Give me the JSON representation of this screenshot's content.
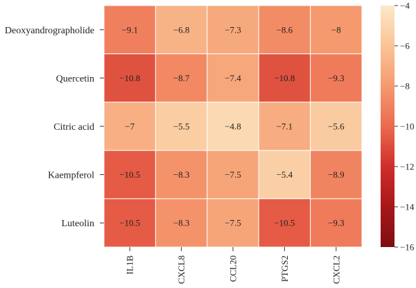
{
  "chart_data": {
    "type": "heatmap",
    "rows": [
      "Deoxyandrographolide",
      "Quercetin",
      "Citric acid",
      "Kaempferol",
      "Luteolin"
    ],
    "columns": [
      "IL1B",
      "CXCL8",
      "CCL20",
      "PTGS2",
      "CXCL2"
    ],
    "values": [
      [
        -9.1,
        -6.8,
        -7.3,
        -8.6,
        -8
      ],
      [
        -10.8,
        -8.7,
        -7.4,
        -10.8,
        -9.3
      ],
      [
        -7,
        -5.5,
        -4.8,
        -7.1,
        -5.6
      ],
      [
        -10.5,
        -8.3,
        -7.5,
        -5.4,
        -8.9
      ],
      [
        -10.5,
        -8.3,
        -7.5,
        -10.5,
        -9.3
      ]
    ],
    "value_labels": [
      [
        "−9.1",
        "−6.8",
        "−7.3",
        "−8.6",
        "−8"
      ],
      [
        "−10.8",
        "−8.7",
        "−7.4",
        "−10.8",
        "−9.3"
      ],
      [
        "−7",
        "−5.5",
        "−4.8",
        "−7.1",
        "−5.6"
      ],
      [
        "−10.5",
        "−8.3",
        "−7.5",
        "−5.4",
        "−8.9"
      ],
      [
        "−10.5",
        "−8.3",
        "−7.5",
        "−10.5",
        "−9.3"
      ]
    ],
    "colorbar": {
      "range": [
        -16,
        -4
      ],
      "ticks": [
        -4,
        -6,
        -8,
        -10,
        -12,
        -14,
        -16
      ],
      "tick_labels": [
        "−4",
        "−6",
        "−8",
        "−10",
        "−12",
        "−14",
        "−16"
      ],
      "colormap": "OrRd-reversed",
      "color_stops": [
        {
          "v": -16,
          "c": "#7e0e10"
        },
        {
          "v": -14,
          "c": "#a8171a"
        },
        {
          "v": -12,
          "c": "#cf2e2a"
        },
        {
          "v": -10,
          "c": "#ec6a4e"
        },
        {
          "v": -8,
          "c": "#f59a6f"
        },
        {
          "v": -6,
          "c": "#f9c496"
        },
        {
          "v": -4,
          "c": "#fde8c7"
        }
      ]
    },
    "text_colors": {
      "dark": "#222222",
      "light": "#ffffff"
    },
    "title": "",
    "xlabel": "",
    "ylabel": ""
  }
}
